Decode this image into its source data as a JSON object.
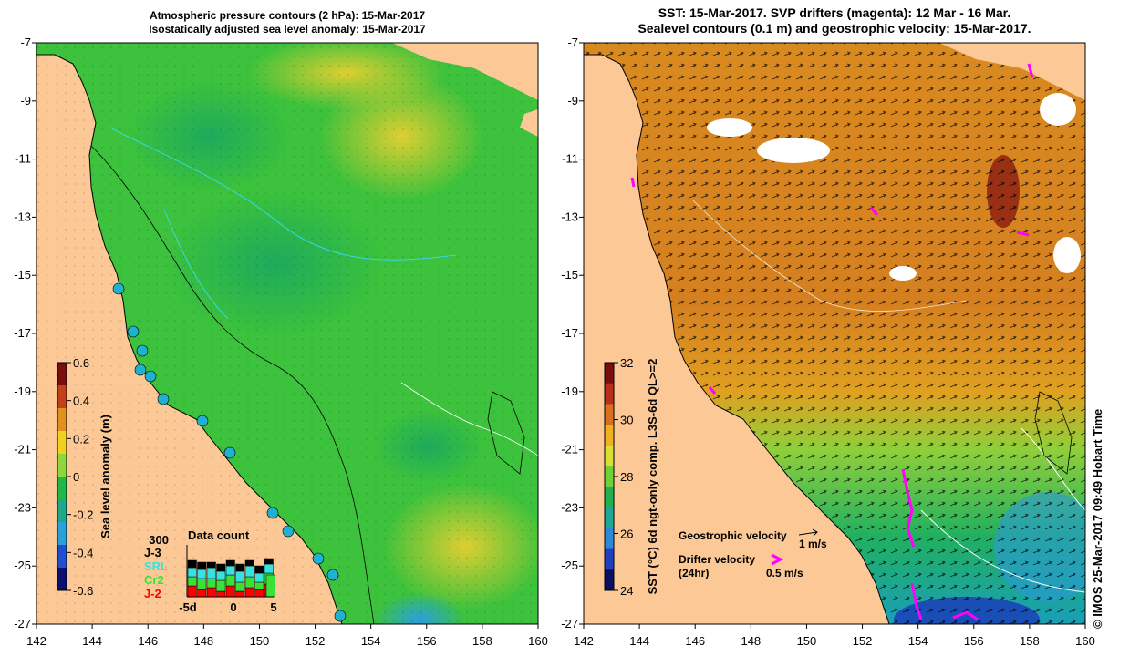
{
  "left_panel": {
    "title_line1": "Atmospheric pressure contours (2 hPa): 15-Mar-2017",
    "title_line2": "Isostatically adjusted sea level anomaly: 15-Mar-2017",
    "colorbar_label": "Sea level anomaly (m)",
    "colorbar_ticks": [
      "0.6",
      "0.4",
      "0.2",
      "0",
      "-0.2",
      "-0.4",
      "-0.6"
    ],
    "colorbar_colors": [
      "#7a0d0d",
      "#c0401a",
      "#e0901f",
      "#f0d020",
      "#8fd63a",
      "#20b84a",
      "#1da88a",
      "#2aa0d8",
      "#1f4fd0",
      "#0a0f70"
    ],
    "data_count": {
      "title": "Data count",
      "max_label": "300",
      "missions": [
        {
          "name": "J-3",
          "color": "#000000"
        },
        {
          "name": "SRL",
          "color": "#38e0e0"
        },
        {
          "name": "Cr2",
          "color": "#38e038"
        },
        {
          "name": "J-2",
          "color": "#ff0000"
        }
      ],
      "x_ticks": [
        "-5d",
        "0",
        "5"
      ]
    }
  },
  "right_panel": {
    "title_line1": "SST: 15-Mar-2017. SVP drifters (magenta): 12 Mar - 16 Mar.",
    "title_line2": "Sealevel contours (0.1 m) and geostrophic velocity: 15-Mar-2017.",
    "colorbar_label": "SST (°C) 6d ngt-only comp. L3S-6d QL>=2",
    "colorbar_ticks": [
      "32",
      "30",
      "28",
      "26",
      "24"
    ],
    "colorbar_colors": [
      "#7a0d0d",
      "#b8301a",
      "#d8701f",
      "#f0b020",
      "#d8e030",
      "#6fd03a",
      "#20b050",
      "#1aa898",
      "#2a8ad8",
      "#1f3fc0",
      "#0a0f60"
    ],
    "legend": {
      "geostrophic_label": "Geostrophic velocity",
      "geostrophic_scale": "1 m/s",
      "drifter_label": "Drifter velocity",
      "drifter_sub": "(24hr)",
      "drifter_scale": "0.5 m/s"
    }
  },
  "axes": {
    "lon_ticks": [
      "142",
      "144",
      "146",
      "148",
      "150",
      "152",
      "154",
      "156",
      "158",
      "160"
    ],
    "lat_ticks": [
      "-7",
      "-9",
      "-11",
      "-13",
      "-15",
      "-17",
      "-19",
      "-21",
      "-23",
      "-25",
      "-27"
    ]
  },
  "credit": "© IMOS 25-Mar-2017 09:49 Hobart Time",
  "colors": {
    "land": "#fbc896",
    "sea_green": "#3cc23c",
    "sea_bright": "#7fd83a",
    "sst_orange": "#d88a1f",
    "drifter": "#ff00ff"
  }
}
